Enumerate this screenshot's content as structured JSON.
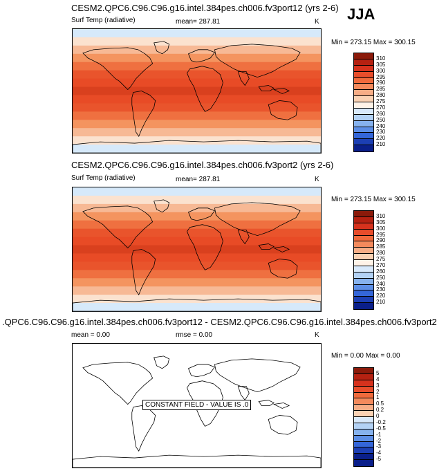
{
  "season": "JJA",
  "panels": [
    {
      "title": "CESM2.QPC6.C96.C96.g16.intel.384pes.ch006.fv3port12 (yrs 2-6)",
      "field": "Surf Temp (radiative)",
      "mean_text": "mean= 287.81",
      "units": "K",
      "minmax": "Min = 273.15 Max = 300.15"
    },
    {
      "title": "CESM2.QPC6.C96.C96.g16.intel.384pes.ch006.fv3port2 (yrs 2-6)",
      "field": "Surf Temp (radiative)",
      "mean_text": "mean= 287.81",
      "units": "K",
      "minmax": "Min = 273.15 Max = 300.15"
    },
    {
      "title": ".QPC6.C96.C96.g16.intel.384pes.ch006.fv3port12 - CESM2.QPC6.C96.C96.g16.intel.384pes.ch006.fv3port2",
      "mean_text": "mean =   0.00",
      "rmse_text": "rmse =   0.00",
      "units": "K",
      "minmax": "Min =  0.00 Max =   0.00",
      "constant_label": "CONSTANT FIELD - VALUE IS .0"
    }
  ],
  "temp_scale": {
    "labels": [
      "310",
      "305",
      "300",
      "295",
      "290",
      "285",
      "280",
      "275",
      "270",
      "260",
      "250",
      "240",
      "230",
      "220",
      "210"
    ],
    "colors": [
      "#8b1a0a",
      "#b52111",
      "#d6321d",
      "#e84d2b",
      "#f06a3c",
      "#f48a5c",
      "#f7ad86",
      "#fad2b4",
      "#fff3e8",
      "#d8e9fb",
      "#b3d2f5",
      "#86b2ee",
      "#5c8ee6",
      "#3466d9",
      "#1c3fb4",
      "#0a1f8a"
    ]
  },
  "diff_scale": {
    "labels": [
      "5",
      "4",
      "3",
      "2",
      "1",
      "0.5",
      "0.2",
      "0",
      "-0.2",
      "-0.5",
      "-1",
      "-2",
      "-3",
      "-4",
      "-5"
    ],
    "colors": [
      "#8b1a0a",
      "#b52111",
      "#d6321d",
      "#e84d2b",
      "#f06a3c",
      "#f48a5c",
      "#f7ad86",
      "#fad2b4",
      "#d8e9fb",
      "#b3d2f5",
      "#86b2ee",
      "#5c8ee6",
      "#3466d9",
      "#1c3fb4",
      "#0a1f8a",
      "#0a1f8a"
    ]
  },
  "map_bands": [
    "#d6e9fa",
    "#fbe2cf",
    "#f7b995",
    "#f4945f",
    "#ef7040",
    "#e9542c",
    "#e84b26",
    "#d9401e",
    "#e84b26",
    "#e9542c",
    "#ef7040",
    "#f4945f",
    "#f7b995",
    "#fbe2cf",
    "#d6e9fa"
  ]
}
